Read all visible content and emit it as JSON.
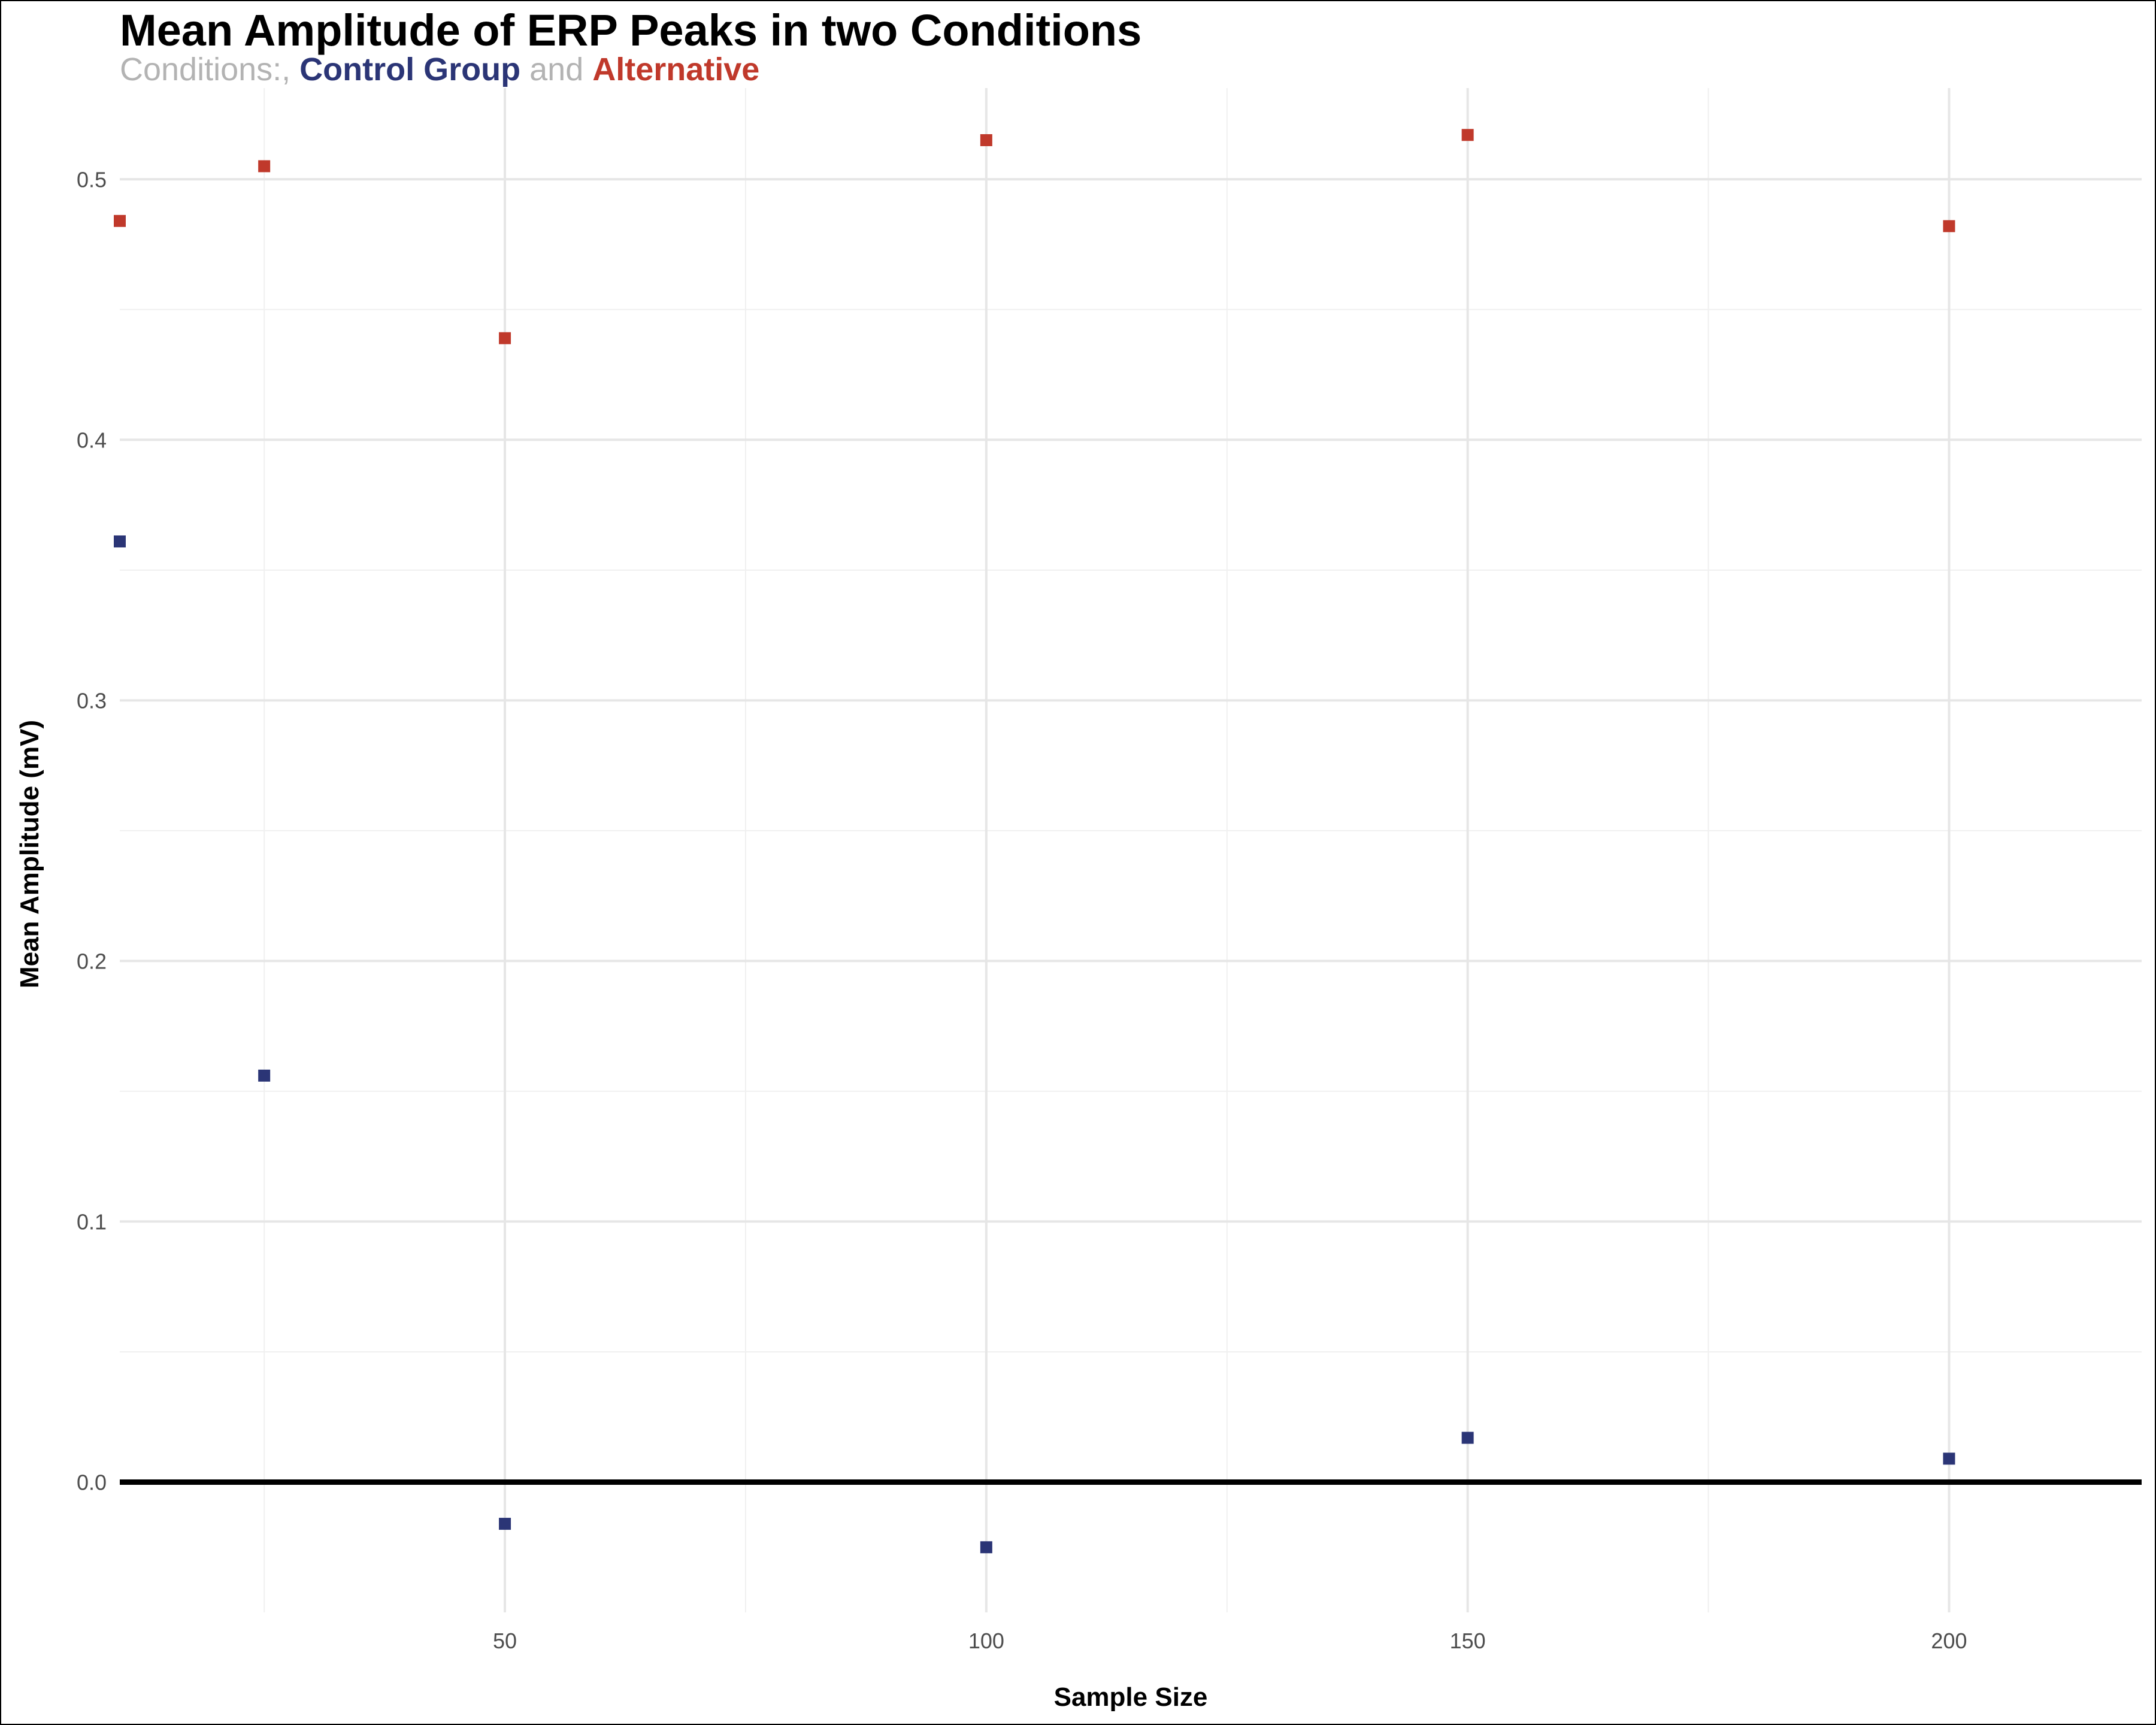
{
  "chart_data": {
    "type": "scatter",
    "title": "Mean Amplitude of ERP Peaks in two Conditions",
    "subtitle": {
      "prefix": "Conditions:, ",
      "series1_label": "Control Group",
      "joiner": " and ",
      "series2_label": "Alternative"
    },
    "xlabel": "Sample Size",
    "ylabel": "Mean Amplitude (mV)",
    "xlim": [
      10,
      220
    ],
    "ylim": [
      -0.05,
      0.535
    ],
    "x_ticks": [
      50,
      100,
      150,
      200
    ],
    "x_tick_labels": [
      "50",
      "100",
      "150",
      "200"
    ],
    "y_ticks": [
      0.0,
      0.1,
      0.2,
      0.3,
      0.4,
      0.5
    ],
    "y_tick_labels": [
      "0.0",
      "0.1",
      "0.2",
      "0.3",
      "0.4",
      "0.5"
    ],
    "grid": true,
    "reference_line_y": 0,
    "series": [
      {
        "name": "Control Group",
        "color": "#2b3576",
        "x": [
          10,
          25,
          50,
          100,
          150,
          200
        ],
        "y": [
          0.361,
          0.156,
          -0.016,
          -0.025,
          0.017,
          0.009
        ]
      },
      {
        "name": "Alternative",
        "color": "#c0392b",
        "x": [
          10,
          25,
          50,
          100,
          150,
          200
        ],
        "y": [
          0.484,
          0.505,
          0.439,
          0.515,
          0.517,
          0.482
        ]
      }
    ],
    "colors": {
      "subtitle_gray": "#b3b3b3",
      "grid_major": "#e6e6e6",
      "grid_minor": "#f0f0f0",
      "zero_line": "#000000"
    }
  }
}
